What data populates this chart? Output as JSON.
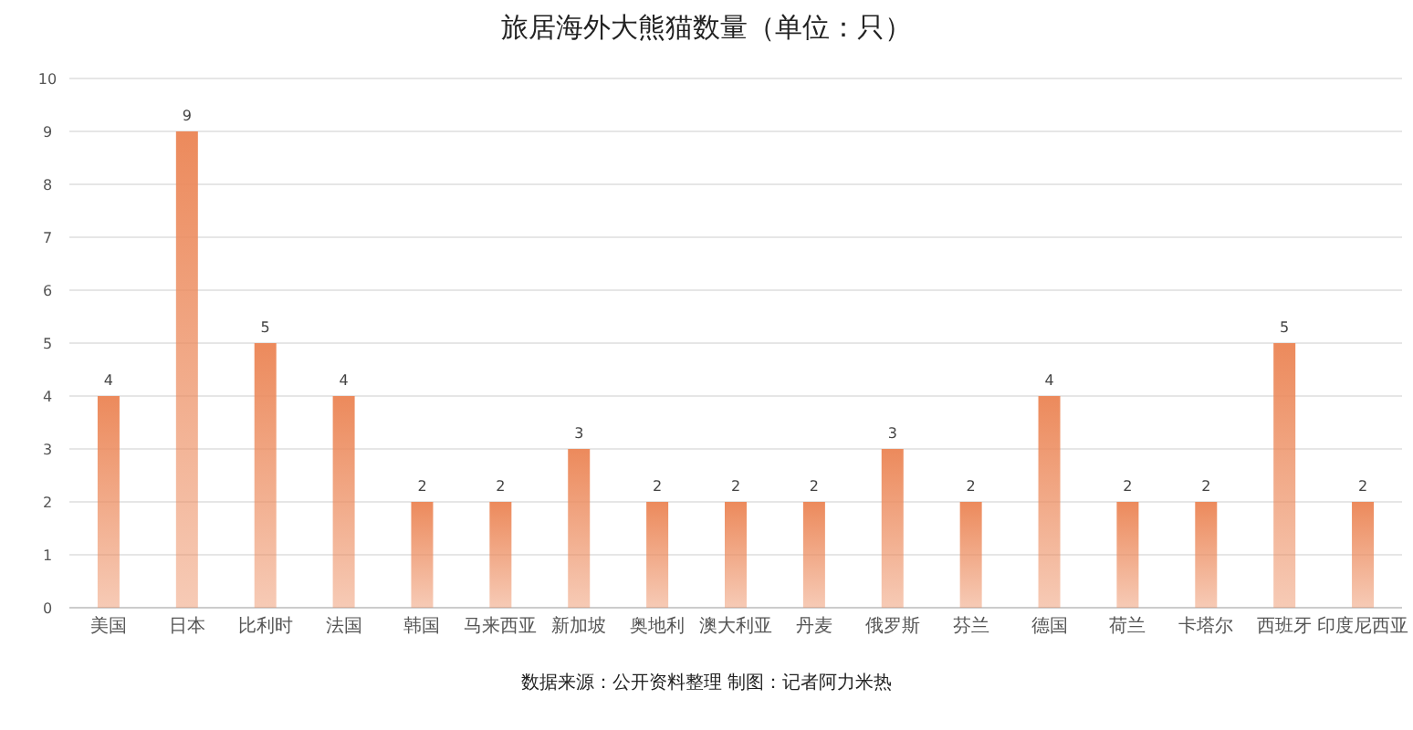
{
  "chart_data": {
    "type": "bar",
    "title": "旅居海外大熊猫数量（单位：只）",
    "categories": [
      "美国",
      "日本",
      "比利时",
      "法国",
      "韩国",
      "马来西亚",
      "新加坡",
      "奥地利",
      "澳大利亚",
      "丹麦",
      "俄罗斯",
      "芬兰",
      "德国",
      "荷兰",
      "卡塔尔",
      "西班牙",
      "印度尼西亚"
    ],
    "values": [
      4,
      9,
      5,
      4,
      2,
      2,
      3,
      2,
      2,
      2,
      3,
      2,
      4,
      2,
      2,
      5,
      2
    ],
    "color": "#ec8a5c",
    "ylim": [
      0,
      10
    ],
    "yticks": [
      0,
      1,
      2,
      3,
      4,
      5,
      6,
      7,
      8,
      9,
      10
    ],
    "grid": "y",
    "data_labels": true,
    "annotations": [
      "数据来源：公开资料整理 制图：记者阿力米热"
    ]
  }
}
